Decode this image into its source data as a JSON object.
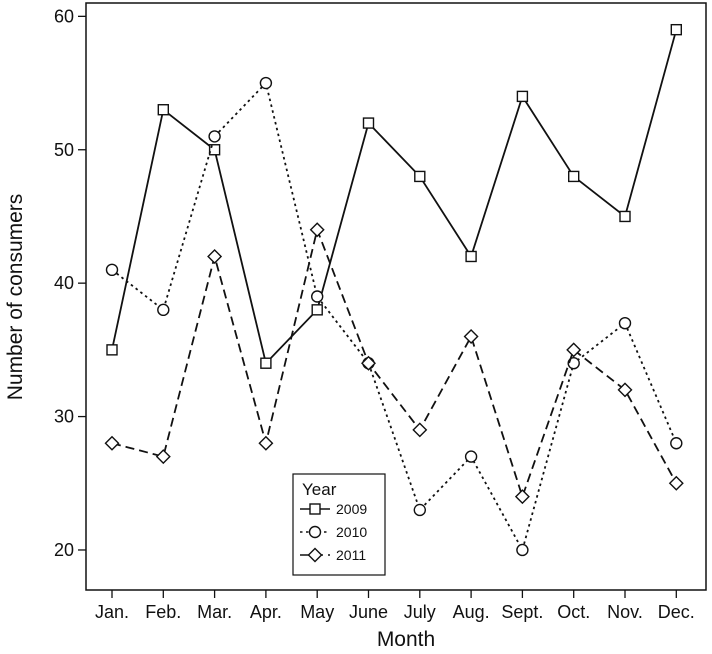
{
  "chart_data": {
    "type": "line",
    "xlabel": "Month",
    "ylabel": "Number of consumers",
    "categories": [
      "Jan.",
      "Feb.",
      "Mar.",
      "Apr.",
      "May",
      "June",
      "July",
      "Aug.",
      "Sept.",
      "Oct.",
      "Nov.",
      "Dec."
    ],
    "ylim": [
      17,
      61
    ],
    "yticks": [
      20,
      30,
      40,
      50,
      60
    ],
    "grid": false,
    "legend": {
      "title": "Year",
      "placement": "bottom-center"
    },
    "series": [
      {
        "name": "2009",
        "marker": "square",
        "line_style": "solid",
        "values": [
          35,
          53,
          50,
          34,
          38,
          52,
          48,
          42,
          54,
          48,
          45,
          59
        ]
      },
      {
        "name": "2010",
        "marker": "circle",
        "line_style": "dotted",
        "values": [
          41,
          38,
          51,
          55,
          39,
          34,
          23,
          27,
          20,
          34,
          37,
          28
        ]
      },
      {
        "name": "2011",
        "marker": "diamond",
        "line_style": "dashed",
        "values": [
          28,
          27,
          42,
          28,
          44,
          34,
          29,
          36,
          24,
          35,
          32,
          25
        ]
      }
    ]
  }
}
